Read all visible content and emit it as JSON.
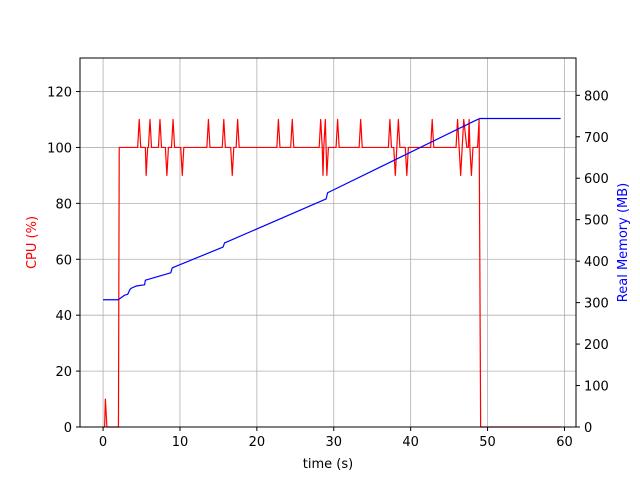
{
  "chart_data": {
    "type": "line",
    "xlabel": "time (s)",
    "ylabel_left": "CPU (%)",
    "ylabel_right": "Real Memory (MB)",
    "xlim": [
      -3,
      61.5
    ],
    "ylim_left": [
      0,
      132
    ],
    "ylim_right": [
      0,
      890
    ],
    "xticks": [
      0,
      10,
      20,
      30,
      40,
      50,
      60
    ],
    "yticks_left": [
      0,
      20,
      40,
      60,
      80,
      100,
      120
    ],
    "yticks_right": [
      0,
      100,
      200,
      300,
      400,
      500,
      600,
      700,
      800
    ],
    "grid": true,
    "colors": {
      "cpu": "#ff0000",
      "memory": "#0000ff",
      "grid": "#b0b0b0"
    },
    "series": [
      {
        "axis": "left",
        "x": [
          0,
          0.2,
          0.3,
          0.5,
          2.0,
          2.1,
          4.5,
          4.7,
          4.9,
          5.5,
          5.6,
          5.8,
          5.9,
          6.1,
          6.3,
          7.2,
          7.4,
          7.6,
          8.1,
          8.3,
          8.5,
          8.9,
          9.1,
          9.3,
          10.1,
          10.3,
          10.5,
          13.5,
          13.7,
          13.9,
          15.5,
          15.7,
          15.9,
          16.6,
          16.8,
          17.0,
          17.3,
          17.5,
          17.7,
          22.6,
          22.8,
          23.0,
          24.4,
          24.6,
          24.8,
          28.1,
          28.3,
          28.5,
          28.6,
          28.7,
          28.9,
          29.0,
          29.1,
          29.3,
          30.3,
          30.5,
          30.7,
          33.3,
          33.5,
          33.7,
          37.1,
          37.3,
          37.5,
          37.8,
          38.0,
          38.2,
          38.4,
          38.6,
          38.8,
          39.3,
          39.5,
          39.7,
          42.6,
          42.8,
          43.0,
          45.9,
          46.1,
          46.3,
          46.5,
          46.7,
          46.9,
          47.3,
          47.5,
          47.6,
          47.7,
          47.9,
          48.1,
          48.7,
          48.9,
          49.1,
          59.5
        ],
        "y": [
          0,
          0,
          10,
          0,
          0,
          100,
          100,
          110,
          100,
          100,
          90,
          100,
          100,
          110,
          100,
          100,
          110,
          100,
          100,
          90,
          100,
          100,
          110,
          100,
          100,
          90,
          100,
          100,
          110,
          100,
          100,
          110,
          100,
          100,
          90,
          100,
          100,
          110,
          100,
          100,
          110,
          100,
          100,
          110,
          100,
          100,
          110,
          100,
          90,
          100,
          110,
          100,
          90,
          100,
          100,
          110,
          100,
          100,
          110,
          100,
          100,
          110,
          100,
          100,
          90,
          100,
          110,
          100,
          100,
          100,
          90,
          100,
          100,
          110,
          100,
          100,
          110,
          100,
          90,
          100,
          110,
          100,
          100,
          110,
          100,
          90,
          100,
          100,
          110,
          0,
          0
        ]
      },
      {
        "axis": "right",
        "x": [
          0,
          2.0,
          2.2,
          2.8,
          3.2,
          3.5,
          3.7,
          4.3,
          5.4,
          5.5,
          8.8,
          9.0,
          15.6,
          15.8,
          29.0,
          29.2,
          48.5,
          49.0,
          59.5
        ],
        "y": [
          307,
          307,
          310,
          318,
          320,
          332,
          335,
          340,
          343,
          354,
          372,
          384,
          434,
          444,
          550,
          565,
          740,
          744,
          744
        ]
      }
    ]
  }
}
